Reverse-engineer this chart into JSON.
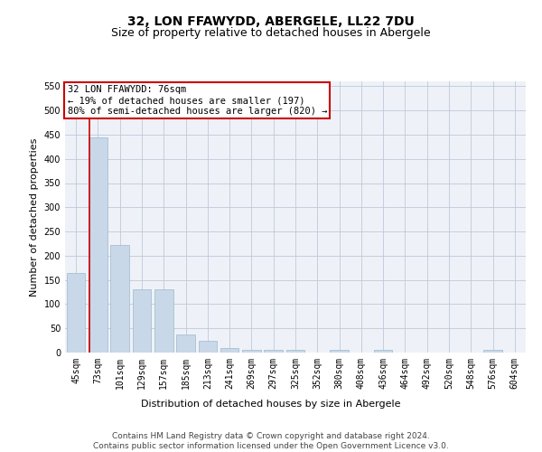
{
  "title_line1": "32, LON FFAWYDD, ABERGELE, LL22 7DU",
  "title_line2": "Size of property relative to detached houses in Abergele",
  "xlabel": "Distribution of detached houses by size in Abergele",
  "ylabel": "Number of detached properties",
  "bar_color": "#c8d8e8",
  "bar_edge_color": "#a0b8cc",
  "categories": [
    "45sqm",
    "73sqm",
    "101sqm",
    "129sqm",
    "157sqm",
    "185sqm",
    "213sqm",
    "241sqm",
    "269sqm",
    "297sqm",
    "325sqm",
    "352sqm",
    "380sqm",
    "408sqm",
    "436sqm",
    "464sqm",
    "492sqm",
    "520sqm",
    "548sqm",
    "576sqm",
    "604sqm"
  ],
  "values": [
    165,
    445,
    222,
    130,
    130,
    37,
    24,
    10,
    6,
    5,
    5,
    0,
    5,
    0,
    5,
    0,
    0,
    0,
    0,
    5,
    0
  ],
  "ylim": [
    0,
    560
  ],
  "yticks": [
    0,
    50,
    100,
    150,
    200,
    250,
    300,
    350,
    400,
    450,
    500,
    550
  ],
  "vline_x": 0.625,
  "property_line_label": "32 LON FFAWYDD: 76sqm",
  "annotation_line1": "← 19% of detached houses are smaller (197)",
  "annotation_line2": "80% of semi-detached houses are larger (820) →",
  "annotation_box_color": "#ffffff",
  "annotation_box_edge": "#cc0000",
  "vline_color": "#cc0000",
  "grid_color": "#c0c8d8",
  "background_color": "#eef2f8",
  "footer_line1": "Contains HM Land Registry data © Crown copyright and database right 2024.",
  "footer_line2": "Contains public sector information licensed under the Open Government Licence v3.0.",
  "title_fontsize": 10,
  "subtitle_fontsize": 9,
  "axis_label_fontsize": 8,
  "tick_fontsize": 7,
  "annotation_fontsize": 7.5,
  "footer_fontsize": 6.5
}
